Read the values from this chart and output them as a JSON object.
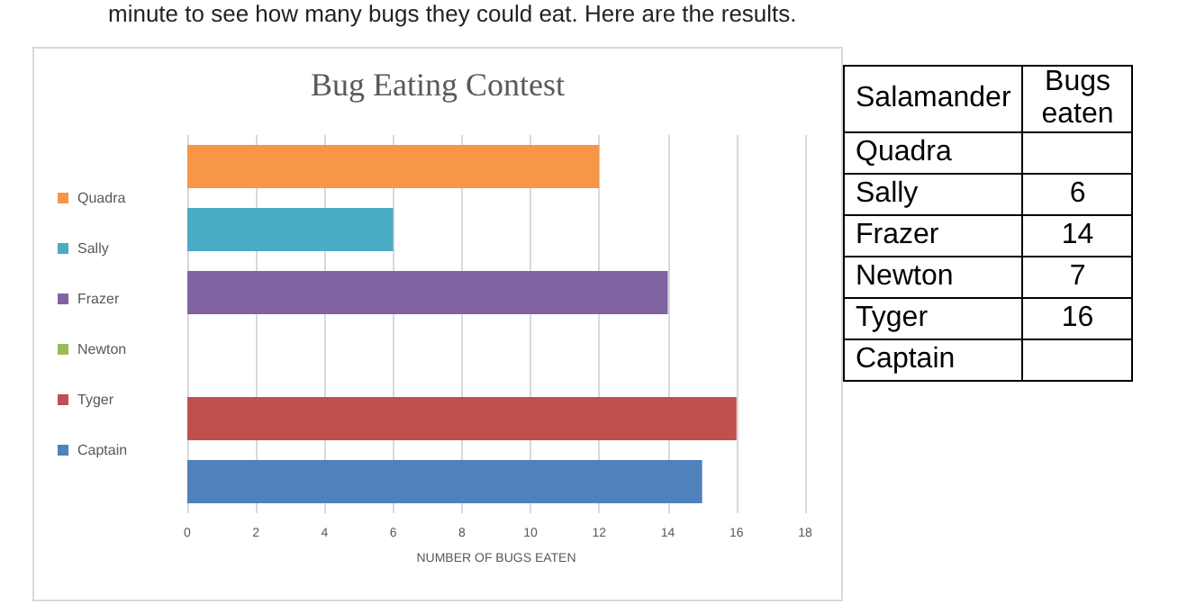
{
  "chart_data": [
    {
      "type": "bar",
      "orientation": "horizontal",
      "title": "Bug Eating Contest",
      "xlabel": "NUMBER OF BUGS EATEN",
      "annotations": [
        "minute to see how many bugs they could eat. Here are the results."
      ],
      "categories": [
        null,
        null,
        null,
        null,
        null,
        null
      ],
      "series": [
        {
          "name": "Quadra",
          "color": "#f79646",
          "values": [
            12,
            null,
            null,
            null,
            null,
            null
          ]
        },
        {
          "name": "Sally",
          "color": "#4bacc6",
          "values": [
            null,
            6,
            null,
            null,
            null,
            null
          ]
        },
        {
          "name": "Frazer",
          "color": "#8064a2",
          "values": [
            null,
            null,
            14,
            null,
            null,
            null
          ]
        },
        {
          "name": "Newton",
          "color": "#9bbb59",
          "values": [
            null,
            null,
            null,
            null,
            null,
            null
          ]
        },
        {
          "name": "Tyger",
          "color": "#c0504d",
          "values": [
            null,
            null,
            null,
            null,
            16,
            null
          ]
        },
        {
          "name": "Captain",
          "color": "#4f81bd",
          "values": [
            null,
            null,
            null,
            null,
            null,
            15
          ]
        }
      ],
      "xlim": [
        0,
        18
      ],
      "xticks": [
        0,
        2,
        4,
        6,
        8,
        10,
        12,
        14,
        16,
        18
      ],
      "grid": "x",
      "legend": "left",
      "tick_labels": "x"
    },
    {
      "type": "other",
      "xlabel": "Salamander",
      "ylabel": "Bugs eaten",
      "data_labels": true,
      "categories": [
        "Quadra",
        "Sally",
        "Frazer",
        "Newton",
        "Tyger",
        "Captain"
      ],
      "values": [
        null,
        6,
        14,
        7,
        16,
        null
      ]
    }
  ]
}
